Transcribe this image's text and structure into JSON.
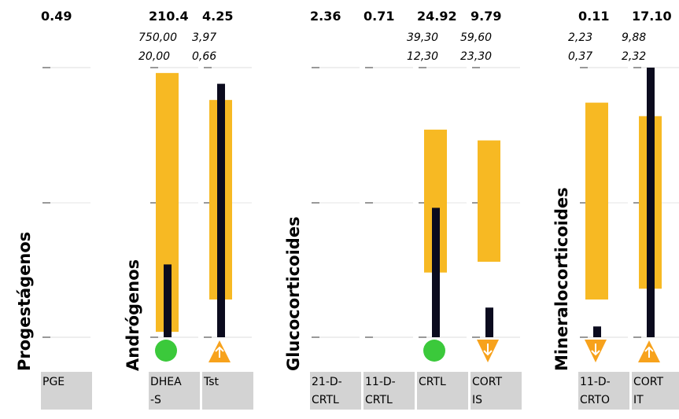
{
  "chart_data": {
    "type": "bar",
    "description_type": "range-bar with measured value",
    "groups": [
      {
        "label": "Progestágenos",
        "analytes": [
          "PGE"
        ]
      },
      {
        "label": "Andrógenos",
        "analytes": [
          "DHEA-S",
          "Tst"
        ]
      },
      {
        "label": "Glucocorticoides",
        "analytes": [
          "21-D-CRTL",
          "11-D-CRTL",
          "CRTL",
          "CORTIS"
        ]
      },
      {
        "label": "Mineralocorticoides",
        "analytes": [
          "11-D-CRTO",
          "CORTIT"
        ]
      }
    ],
    "analytes": [
      {
        "code_lines": [
          "PGE"
        ],
        "value": "0.49",
        "ref_high": "",
        "ref_low": "",
        "range_frac": null,
        "value_frac": null,
        "status": "none"
      },
      {
        "code_lines": [
          "DHEA",
          "-S"
        ],
        "value": "210.4",
        "ref_high": "750,00",
        "ref_low": "20,00",
        "range_frac": [
          0.02,
          0.98
        ],
        "value_frac": 0.27,
        "status": "normal"
      },
      {
        "code_lines": [
          "Tst"
        ],
        "value": "4.25",
        "ref_high": "3,97",
        "ref_low": "0,66",
        "range_frac": [
          0.14,
          0.88
        ],
        "value_frac": 0.94,
        "status": "high"
      },
      {
        "code_lines": [
          "21-D-",
          "CRTL"
        ],
        "value": "2.36",
        "ref_high": "",
        "ref_low": "",
        "range_frac": null,
        "value_frac": null,
        "status": "none"
      },
      {
        "code_lines": [
          "11-D-",
          "CRTL"
        ],
        "value": "0.71",
        "ref_high": "",
        "ref_low": "",
        "range_frac": null,
        "value_frac": null,
        "status": "none"
      },
      {
        "code_lines": [
          "CRTL"
        ],
        "value": "24.92",
        "ref_high": "39,30",
        "ref_low": "12,30",
        "range_frac": [
          0.24,
          0.77
        ],
        "value_frac": 0.48,
        "status": "normal"
      },
      {
        "code_lines": [
          "CORT",
          "IS"
        ],
        "value": "9.79",
        "ref_high": "59,60",
        "ref_low": "23,30",
        "range_frac": [
          0.28,
          0.73
        ],
        "value_frac": 0.11,
        "status": "low"
      },
      {
        "code_lines": [
          "11-D-",
          "CRTO"
        ],
        "value": "0.11",
        "ref_high": "2,23",
        "ref_low": "0,37",
        "range_frac": [
          0.14,
          0.87
        ],
        "value_frac": 0.04,
        "status": "low"
      },
      {
        "code_lines": [
          "CORT",
          "IT"
        ],
        "value": "17.10",
        "ref_high": "9,88",
        "ref_low": "2,32",
        "range_frac": [
          0.18,
          0.82
        ],
        "value_frac": 1.0,
        "status": "high"
      }
    ]
  },
  "colors": {
    "range": "#f7b923",
    "value": "#0b0b1e",
    "normal": "#3bc93b",
    "warning": "#f7a21c",
    "code_bg": "#d3d3d3",
    "grid": "#cccccc",
    "tick": "#999999"
  },
  "icons": {
    "normal": "green-dot-icon",
    "high": "arrow-up-triangle-icon",
    "low": "arrow-down-triangle-icon"
  }
}
